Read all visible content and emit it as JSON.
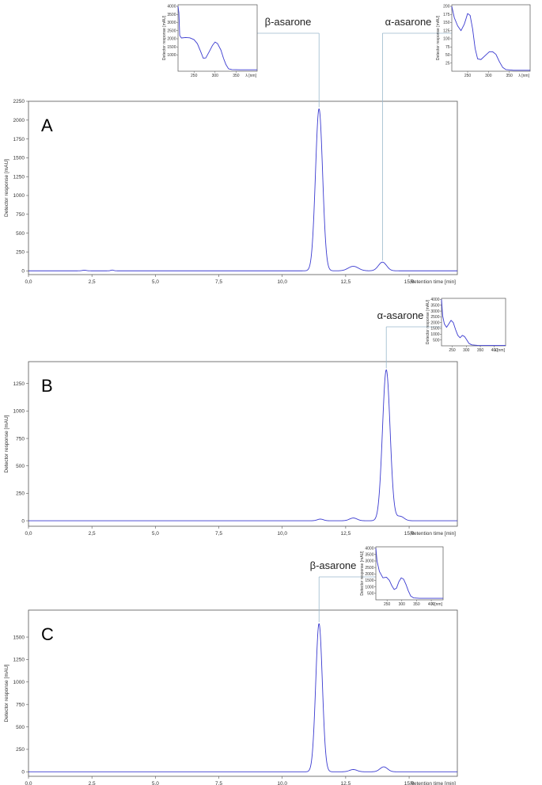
{
  "chart_data": [
    {
      "type": "line",
      "panel": "A",
      "xlabel": "Retention time [min]",
      "ylabel": "Detector response [mAU]",
      "xlim": [
        0,
        16.9
      ],
      "ylim": [
        -50,
        2250
      ],
      "x_ticks": [
        "0,0",
        "2,5",
        "5,0",
        "7,5",
        "10,0",
        "12,5",
        "15,0"
      ],
      "x_tick_values": [
        0,
        2.5,
        5,
        7.5,
        10,
        12.5,
        15
      ],
      "y_ticks": [
        "0",
        "250",
        "500",
        "750",
        "1000",
        "1250",
        "1500",
        "1750",
        "2000",
        "2250"
      ],
      "y_tick_values": [
        0,
        250,
        500,
        750,
        1000,
        1250,
        1500,
        1750,
        2000,
        2250
      ],
      "peaks": [
        {
          "x": 2.2,
          "height": 8,
          "width": 0.08
        },
        {
          "x": 3.3,
          "height": 10,
          "width": 0.06
        },
        {
          "x": 11.45,
          "height": 2150,
          "width": 0.14
        },
        {
          "x": 12.8,
          "height": 60,
          "width": 0.2
        },
        {
          "x": 13.95,
          "height": 115,
          "width": 0.16
        }
      ],
      "annotations": [
        {
          "label": "β-asarone",
          "x": 11.45
        },
        {
          "label": "α-asarone",
          "x": 13.95
        }
      ],
      "insets": [
        {
          "for": "β-asarone",
          "ylabel": "Detector response [mAU]",
          "xlabel": "λ [nm]",
          "x_ticks": [
            "250",
            "300",
            "350"
          ],
          "x_tick_values": [
            250,
            300,
            350
          ],
          "y_ticks": [
            "1000",
            "1500",
            "2000",
            "2500",
            "3000",
            "3500",
            "4000"
          ],
          "y_tick_values": [
            1000,
            1500,
            2000,
            2500,
            3000,
            3500,
            4000
          ],
          "xlim": [
            212,
            400
          ],
          "ylim": [
            0,
            4100
          ],
          "x": [
            212,
            214,
            216,
            220,
            230,
            240,
            250,
            258,
            266,
            272,
            278,
            286,
            294,
            300,
            306,
            314,
            320,
            326,
            332,
            340,
            360,
            380,
            400
          ],
          "y": [
            4000,
            3600,
            2200,
            2050,
            2080,
            2060,
            1950,
            1700,
            1200,
            800,
            820,
            1200,
            1600,
            1800,
            1700,
            1300,
            800,
            400,
            150,
            100,
            90,
            90,
            90
          ]
        },
        {
          "for": "α-asarone",
          "ylabel": "Detector response [mAU]",
          "xlabel": "λ [nm]",
          "x_ticks": [
            "250",
            "300",
            "350"
          ],
          "x_tick_values": [
            250,
            300,
            350
          ],
          "y_ticks": [
            "25",
            "50",
            "75",
            "100",
            "125",
            "150",
            "175",
            "200"
          ],
          "y_tick_values": [
            25,
            50,
            75,
            100,
            125,
            150,
            175,
            200
          ],
          "xlim": [
            212,
            400
          ],
          "ylim": [
            0,
            205
          ],
          "x": [
            212,
            218,
            226,
            234,
            242,
            250,
            256,
            262,
            268,
            274,
            282,
            292,
            302,
            310,
            318,
            326,
            334,
            342,
            360,
            380,
            400
          ],
          "y": [
            200,
            165,
            140,
            125,
            145,
            178,
            172,
            130,
            70,
            38,
            36,
            48,
            60,
            60,
            52,
            30,
            12,
            5,
            3,
            3,
            3
          ]
        }
      ]
    },
    {
      "type": "line",
      "panel": "B",
      "xlabel": "Retention time [min]",
      "ylabel": "Detector response [mAU]",
      "xlim": [
        0,
        16.9
      ],
      "ylim": [
        -50,
        1450
      ],
      "x_ticks": [
        "0,0",
        "2,5",
        "5,0",
        "7,5",
        "10,0",
        "12,5",
        "15,0"
      ],
      "x_tick_values": [
        0,
        2.5,
        5,
        7.5,
        10,
        12.5,
        15
      ],
      "y_ticks": [
        "0",
        "250",
        "500",
        "750",
        "1000",
        "1250"
      ],
      "y_tick_values": [
        0,
        250,
        500,
        750,
        1000,
        1250
      ],
      "peaks": [
        {
          "x": 11.5,
          "height": 15,
          "width": 0.12
        },
        {
          "x": 12.8,
          "height": 25,
          "width": 0.15
        },
        {
          "x": 14.1,
          "height": 1375,
          "width": 0.15
        },
        {
          "x": 14.65,
          "height": 40,
          "width": 0.15
        }
      ],
      "annotations": [
        {
          "label": "α-asarone",
          "x": 14.1
        }
      ],
      "insets": [
        {
          "for": "α-asarone",
          "ylabel": "Detector response [mAU]",
          "xlabel": "λ [nm]",
          "x_ticks": [
            "250",
            "300",
            "350",
            "400"
          ],
          "x_tick_values": [
            250,
            300,
            350,
            400
          ],
          "y_ticks": [
            "500",
            "1000",
            "1500",
            "2000",
            "2500",
            "3000",
            "3500",
            "4000"
          ],
          "y_tick_values": [
            500,
            1000,
            1500,
            2000,
            2500,
            3000,
            3500,
            4000
          ],
          "xlim": [
            212,
            440
          ],
          "ylim": [
            0,
            4100
          ],
          "x": [
            212,
            216,
            222,
            230,
            238,
            246,
            254,
            262,
            270,
            278,
            286,
            294,
            302,
            310,
            320,
            340,
            380,
            440
          ],
          "y": [
            4000,
            2600,
            1900,
            1600,
            1900,
            2200,
            2000,
            1400,
            900,
            700,
            900,
            800,
            500,
            200,
            80,
            40,
            30,
            30
          ]
        }
      ]
    },
    {
      "type": "line",
      "panel": "C",
      "xlabel": "Retention time [min]",
      "ylabel": "Detector response [mAU]",
      "xlim": [
        0,
        16.9
      ],
      "ylim": [
        -50,
        1800
      ],
      "x_ticks": [
        "0,0",
        "2,5",
        "5,0",
        "7,5",
        "10,0",
        "12,5",
        "15,0"
      ],
      "x_tick_values": [
        0,
        2.5,
        5,
        7.5,
        10,
        12.5,
        15
      ],
      "y_ticks": [
        "0",
        "250",
        "500",
        "750",
        "1000",
        "1250",
        "1500"
      ],
      "y_tick_values": [
        0,
        250,
        500,
        750,
        1000,
        1250,
        1500
      ],
      "peaks": [
        {
          "x": 11.45,
          "height": 1650,
          "width": 0.13
        },
        {
          "x": 12.8,
          "height": 25,
          "width": 0.15
        },
        {
          "x": 14.0,
          "height": 55,
          "width": 0.15
        }
      ],
      "annotations": [
        {
          "label": "β-asarone",
          "x": 11.45
        }
      ],
      "insets": [
        {
          "for": "β-asarone",
          "ylabel": "Detector response [mAU]",
          "xlabel": "λ [nm]",
          "x_ticks": [
            "250",
            "300",
            "350",
            "400"
          ],
          "x_tick_values": [
            250,
            300,
            350,
            400
          ],
          "y_ticks": [
            "500",
            "1000",
            "1500",
            "2000",
            "2500",
            "3000",
            "3500",
            "4000"
          ],
          "y_tick_values": [
            500,
            1000,
            1500,
            2000,
            2500,
            3000,
            3500,
            4000
          ],
          "xlim": [
            212,
            440
          ],
          "ylim": [
            0,
            4100
          ],
          "x": [
            212,
            216,
            224,
            236,
            248,
            258,
            266,
            274,
            282,
            290,
            298,
            306,
            314,
            322,
            330,
            340,
            360,
            400,
            440
          ],
          "y": [
            4000,
            3000,
            2200,
            1700,
            1750,
            1500,
            1100,
            800,
            900,
            1400,
            1700,
            1600,
            1200,
            700,
            300,
            150,
            120,
            120,
            120
          ]
        }
      ]
    }
  ]
}
